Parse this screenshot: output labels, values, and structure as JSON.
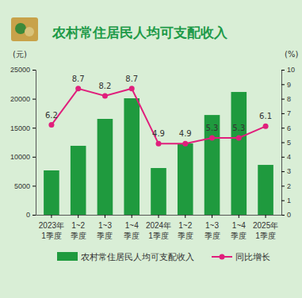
{
  "chart_data": {
    "type": "bar",
    "title": "农村常住居民人均可支配收入",
    "y_axis_label": "(元)",
    "y2_axis_label": "(%)",
    "categories": [
      "2023年\n1季度",
      "1~2\n季度",
      "1~3\n季度",
      "1~4\n季度",
      "2024年\n1季度",
      "1~2\n季度",
      "1~3\n季度",
      "1~4\n季度",
      "2025年\n1季度"
    ],
    "series": [
      {
        "name": "农村常住居民人均可支配收入",
        "type": "bar",
        "color": "#1f9a3e",
        "values": [
          7650,
          11890,
          16530,
          20080,
          8060,
          12290,
          17200,
          21170,
          8600
        ]
      },
      {
        "name": "同比增长",
        "type": "line",
        "axis": "y2",
        "color": "#e01f7c",
        "marker": "circle",
        "data_labels": true,
        "values": [
          6.2,
          8.7,
          8.2,
          8.7,
          4.9,
          4.9,
          5.3,
          5.3,
          6.1
        ]
      }
    ],
    "ylim": [
      0,
      25000
    ],
    "yticks": [
      0,
      5000,
      10000,
      15000,
      20000,
      25000
    ],
    "y2lim": [
      0,
      10
    ],
    "y2ticks": [
      0,
      1,
      2,
      3,
      4,
      5,
      6,
      7,
      8,
      9,
      10
    ],
    "grid": false,
    "legend": "bottom"
  }
}
